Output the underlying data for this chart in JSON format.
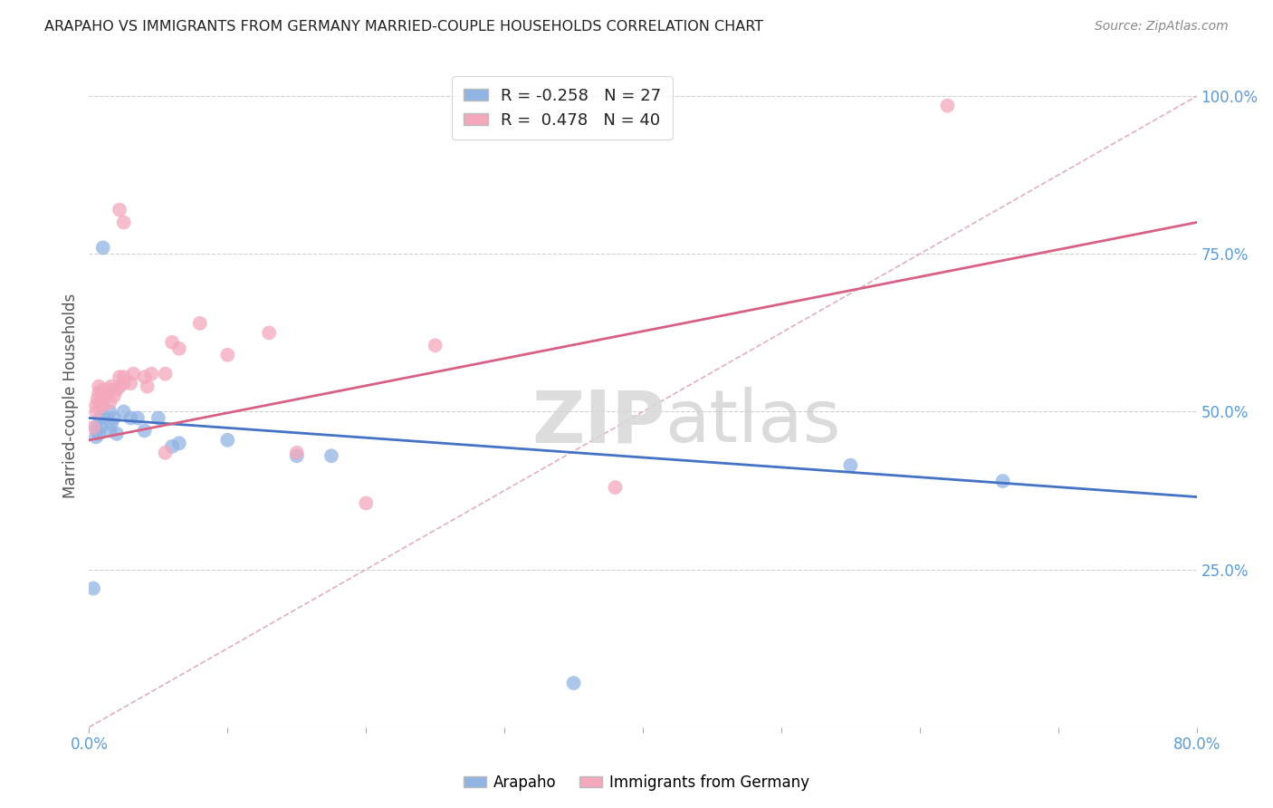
{
  "title": "ARAPAHO VS IMMIGRANTS FROM GERMANY MARRIED-COUPLE HOUSEHOLDS CORRELATION CHART",
  "source": "Source: ZipAtlas.com",
  "ylabel": "Married-couple Households",
  "xlim": [
    0.0,
    0.8
  ],
  "ylim": [
    0.0,
    1.05
  ],
  "watermark_zip": "ZIP",
  "watermark_atlas": "atlas",
  "arapaho_color": "#92b4e3",
  "germany_color": "#f4a8bc",
  "arapaho_line_color": "#4472c4",
  "germany_line_color": "#d96085",
  "diagonal_color": "#e0b0c0",
  "arapaho_R": -0.258,
  "arapaho_N": 27,
  "germany_R": 0.478,
  "germany_N": 40,
  "arapaho_points": [
    [
      0.003,
      0.22
    ],
    [
      0.005,
      0.46
    ],
    [
      0.005,
      0.475
    ],
    [
      0.006,
      0.47
    ],
    [
      0.007,
      0.465
    ],
    [
      0.008,
      0.475
    ],
    [
      0.008,
      0.49
    ],
    [
      0.01,
      0.76
    ],
    [
      0.012,
      0.49
    ],
    [
      0.015,
      0.5
    ],
    [
      0.015,
      0.47
    ],
    [
      0.016,
      0.48
    ],
    [
      0.018,
      0.49
    ],
    [
      0.02,
      0.465
    ],
    [
      0.025,
      0.5
    ],
    [
      0.03,
      0.49
    ],
    [
      0.035,
      0.49
    ],
    [
      0.04,
      0.47
    ],
    [
      0.05,
      0.49
    ],
    [
      0.06,
      0.445
    ],
    [
      0.065,
      0.45
    ],
    [
      0.1,
      0.455
    ],
    [
      0.15,
      0.43
    ],
    [
      0.175,
      0.43
    ],
    [
      0.55,
      0.415
    ],
    [
      0.66,
      0.39
    ],
    [
      0.35,
      0.07
    ]
  ],
  "germany_points": [
    [
      0.003,
      0.475
    ],
    [
      0.005,
      0.5
    ],
    [
      0.005,
      0.51
    ],
    [
      0.006,
      0.52
    ],
    [
      0.007,
      0.53
    ],
    [
      0.007,
      0.54
    ],
    [
      0.008,
      0.51
    ],
    [
      0.009,
      0.525
    ],
    [
      0.01,
      0.51
    ],
    [
      0.01,
      0.535
    ],
    [
      0.012,
      0.525
    ],
    [
      0.013,
      0.53
    ],
    [
      0.015,
      0.515
    ],
    [
      0.015,
      0.535
    ],
    [
      0.016,
      0.54
    ],
    [
      0.018,
      0.525
    ],
    [
      0.02,
      0.535
    ],
    [
      0.022,
      0.54
    ],
    [
      0.022,
      0.555
    ],
    [
      0.025,
      0.545
    ],
    [
      0.025,
      0.555
    ],
    [
      0.03,
      0.545
    ],
    [
      0.032,
      0.56
    ],
    [
      0.04,
      0.555
    ],
    [
      0.042,
      0.54
    ],
    [
      0.045,
      0.56
    ],
    [
      0.055,
      0.56
    ],
    [
      0.06,
      0.61
    ],
    [
      0.065,
      0.6
    ],
    [
      0.08,
      0.64
    ],
    [
      0.1,
      0.59
    ],
    [
      0.13,
      0.625
    ],
    [
      0.022,
      0.82
    ],
    [
      0.025,
      0.8
    ],
    [
      0.15,
      0.435
    ],
    [
      0.2,
      0.355
    ],
    [
      0.25,
      0.605
    ],
    [
      0.055,
      0.435
    ],
    [
      0.38,
      0.38
    ],
    [
      0.62,
      0.985
    ]
  ]
}
